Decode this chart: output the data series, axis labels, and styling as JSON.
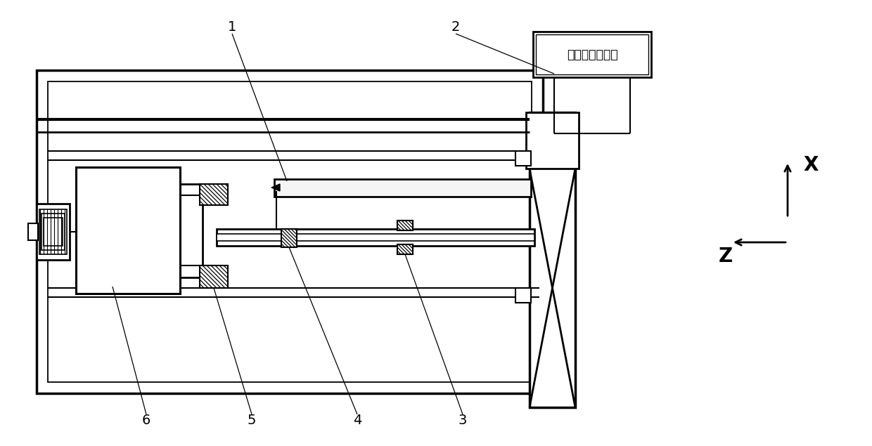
{
  "bg_color": "#ffffff",
  "lc": "#000000",
  "control_unit_text": "控制与显示单元",
  "axis_x_label": "X",
  "axis_z_label": "Z",
  "labels": [
    "1",
    "2",
    "3",
    "4",
    "5",
    "6"
  ],
  "figsize": [
    12.4,
    6.35
  ],
  "dpi": 100
}
